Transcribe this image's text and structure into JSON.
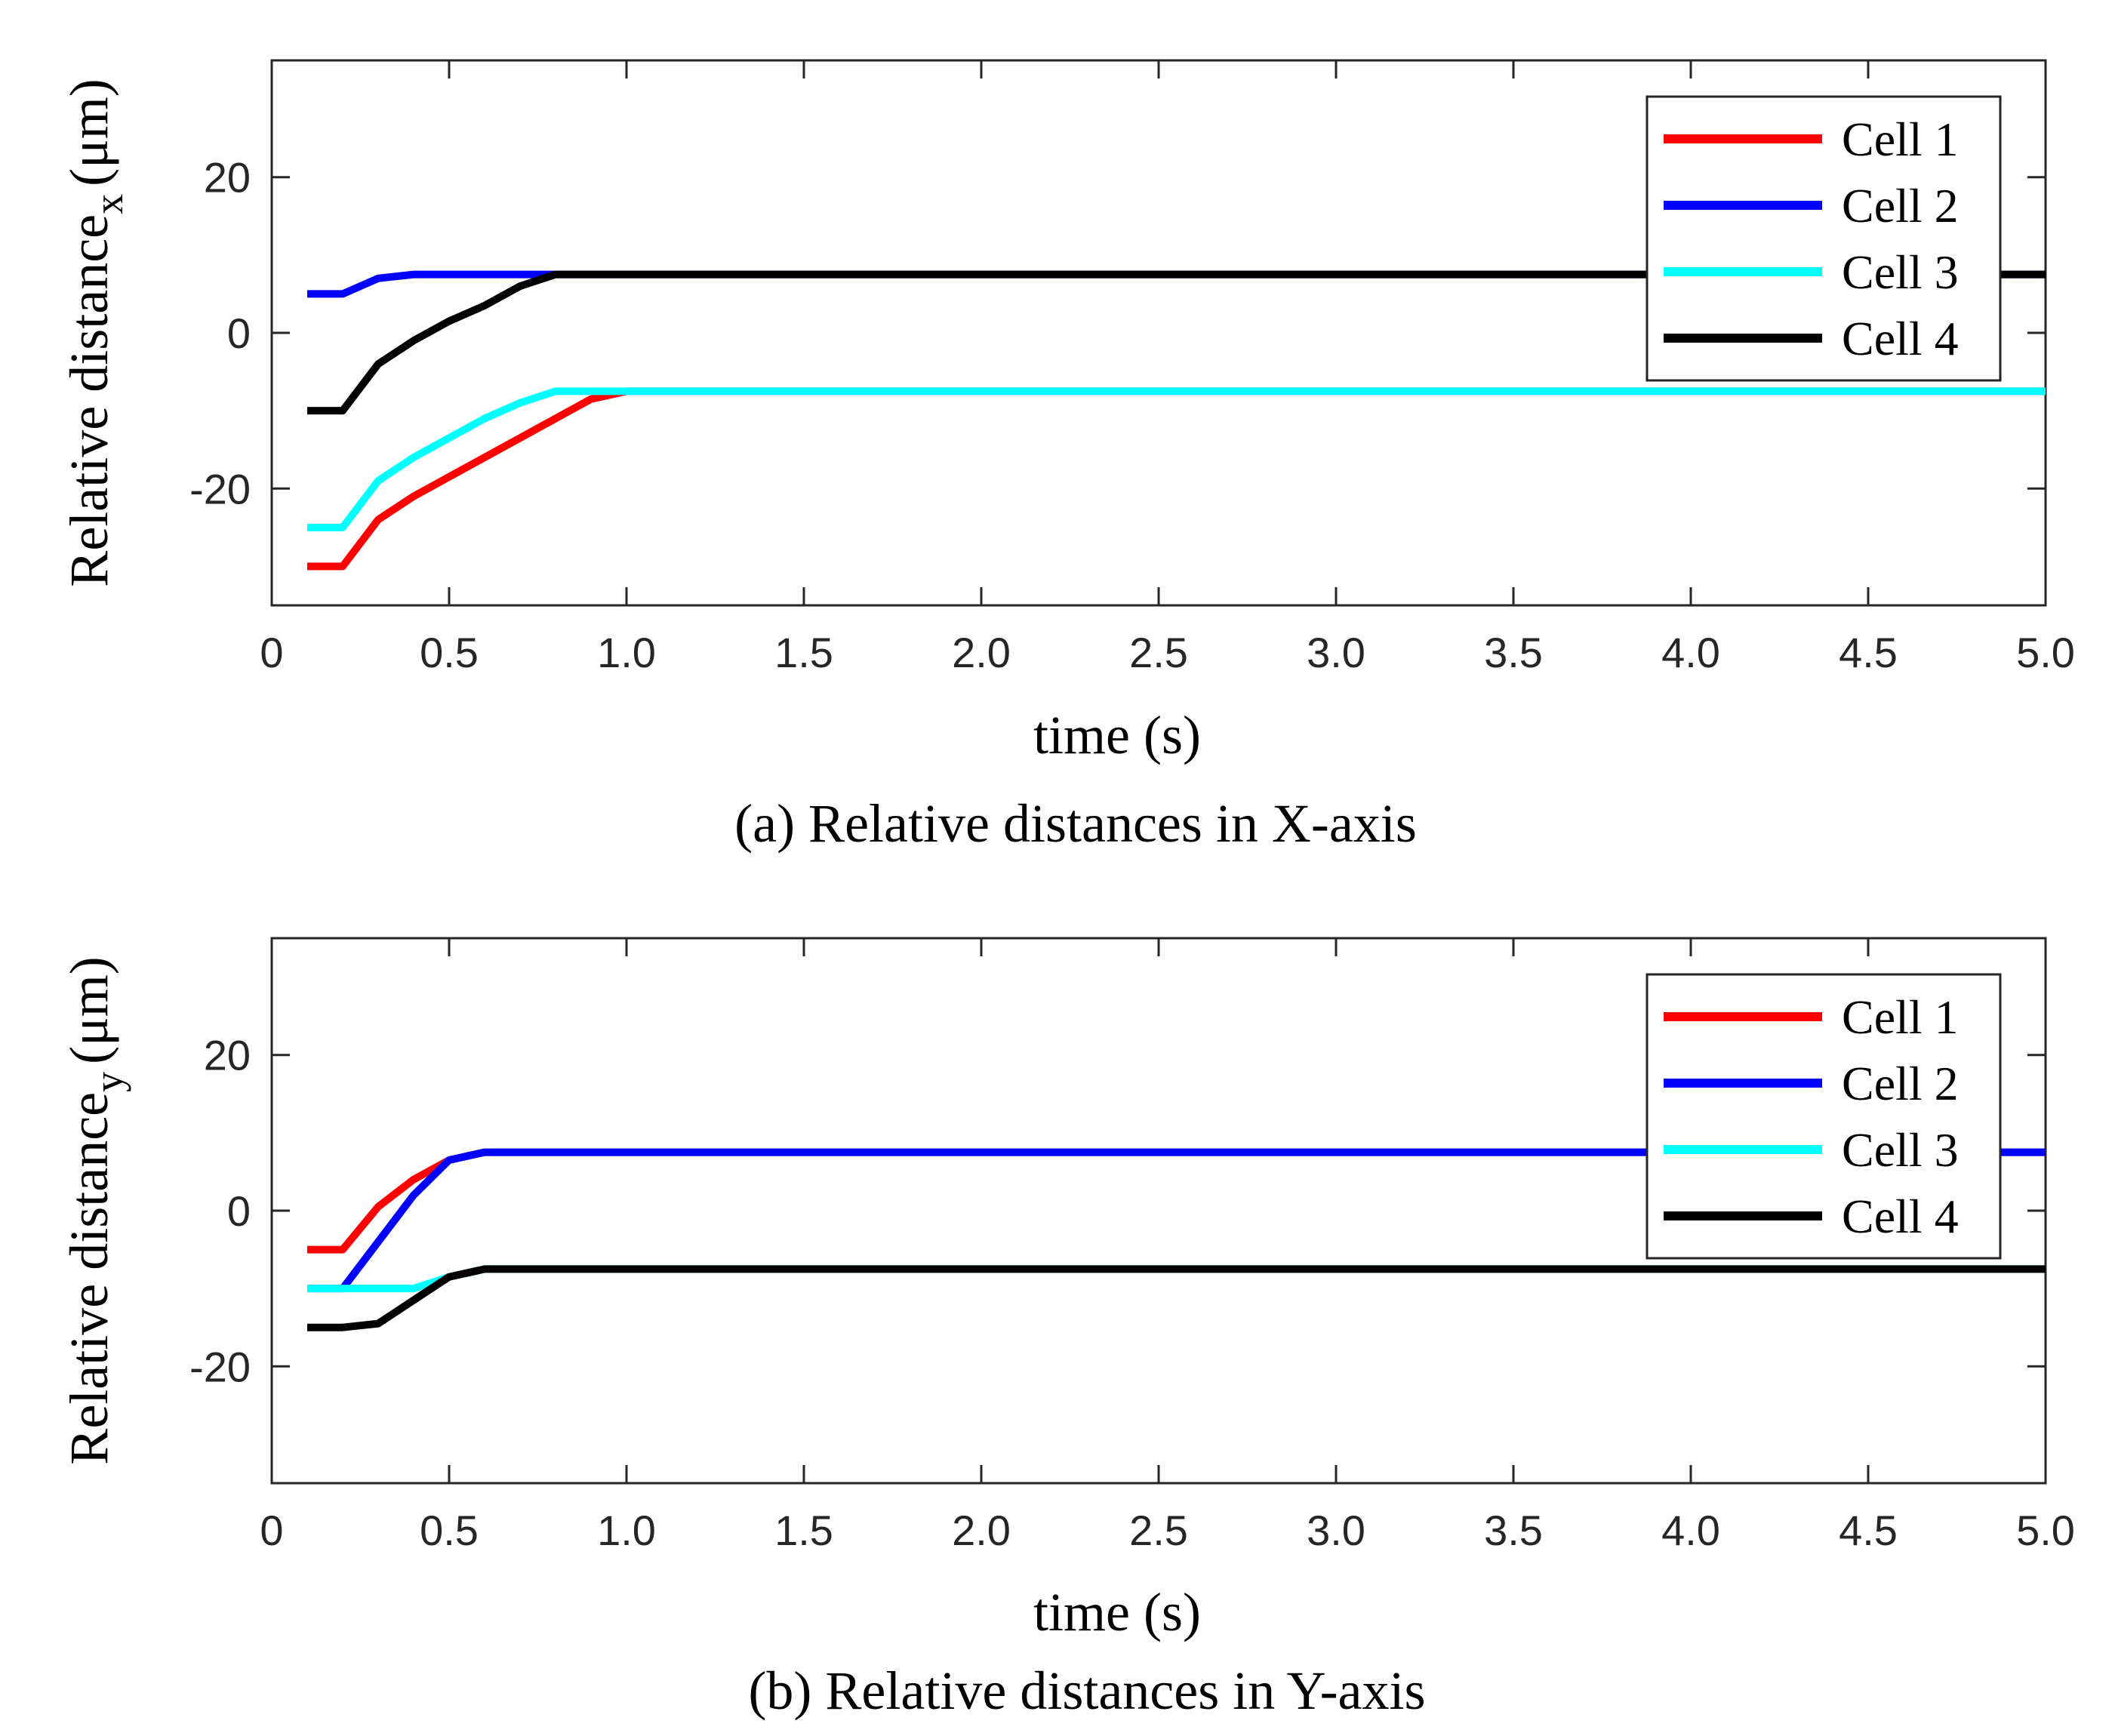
{
  "chart_data": [
    {
      "type": "line",
      "id": "a",
      "caption": "(a) Relative distances in X-axis",
      "xlabel": "time (s)",
      "ylabel": "Relative distance",
      "ylabel_sub": "x",
      "ylabel_unit": "(μm)",
      "xlim": [
        0,
        5.0
      ],
      "ylim": [
        -35,
        35
      ],
      "xticks": [
        0,
        0.5,
        1.0,
        1.5,
        2.0,
        2.5,
        3.0,
        3.5,
        4.0,
        4.5,
        5.0
      ],
      "xtick_labels": [
        "0",
        "0.5",
        "1.0",
        "1.5",
        "2.0",
        "2.5",
        "3.0",
        "3.5",
        "4.0",
        "4.5",
        "5.0"
      ],
      "yticks": [
        -20,
        0,
        20
      ],
      "ytick_labels": [
        "-20",
        "0",
        "20"
      ],
      "legend_position": "top-right",
      "series": [
        {
          "name": "Cell 1",
          "color": "#ff0000",
          "x": [
            0.1,
            0.2,
            0.3,
            0.4,
            0.5,
            0.6,
            0.7,
            0.8,
            0.9,
            1.0,
            5.0
          ],
          "y": [
            -30,
            -30,
            -24,
            -21,
            -18.5,
            -16,
            -13.5,
            -11,
            -8.5,
            -7.5,
            -7.5
          ]
        },
        {
          "name": "Cell 2",
          "color": "#0000ff",
          "x": [
            0.1,
            0.2,
            0.3,
            0.4,
            0.5,
            0.8,
            5.0
          ],
          "y": [
            5,
            5,
            7,
            7.5,
            7.5,
            7.5,
            7.5
          ]
        },
        {
          "name": "Cell 3",
          "color": "#00ffff",
          "x": [
            0.1,
            0.2,
            0.3,
            0.4,
            0.5,
            0.6,
            0.7,
            0.8,
            5.0
          ],
          "y": [
            -25,
            -25,
            -19,
            -16,
            -13.5,
            -11,
            -9,
            -7.5,
            -7.5
          ]
        },
        {
          "name": "Cell 4",
          "color": "#000000",
          "x": [
            0.1,
            0.2,
            0.3,
            0.4,
            0.5,
            0.6,
            0.7,
            0.8,
            5.0
          ],
          "y": [
            -10,
            -10,
            -4,
            -1,
            1.5,
            3.5,
            6,
            7.5,
            7.5
          ]
        }
      ]
    },
    {
      "type": "line",
      "id": "b",
      "caption": "(b) Relative distances in Y-axis",
      "xlabel": "time (s)",
      "ylabel": "Relative distance",
      "ylabel_sub": "y",
      "ylabel_unit": "(μm)",
      "xlim": [
        0,
        5.0
      ],
      "ylim": [
        -35,
        35
      ],
      "xticks": [
        0,
        0.5,
        1.0,
        1.5,
        2.0,
        2.5,
        3.0,
        3.5,
        4.0,
        4.5,
        5.0
      ],
      "xtick_labels": [
        "0",
        "0.5",
        "1.0",
        "1.5",
        "2.0",
        "2.5",
        "3.0",
        "3.5",
        "4.0",
        "4.5",
        "5.0"
      ],
      "yticks": [
        -20,
        0,
        20
      ],
      "ytick_labels": [
        "-20",
        "0",
        "20"
      ],
      "legend_position": "top-right",
      "series": [
        {
          "name": "Cell 1",
          "color": "#ff0000",
          "x": [
            0.1,
            0.2,
            0.3,
            0.4,
            0.5,
            0.6,
            5.0
          ],
          "y": [
            -5,
            -5,
            0.5,
            4,
            6.5,
            7.5,
            7.5
          ]
        },
        {
          "name": "Cell 2",
          "color": "#0000ff",
          "x": [
            0.1,
            0.2,
            0.3,
            0.4,
            0.5,
            0.6,
            5.0
          ],
          "y": [
            -10,
            -10,
            -4,
            2,
            6.5,
            7.5,
            7.5
          ]
        },
        {
          "name": "Cell 3",
          "color": "#00ffff",
          "x": [
            0.1,
            0.2,
            0.3,
            0.4,
            0.5,
            0.6,
            5.0
          ],
          "y": [
            -10,
            -10,
            -10,
            -10,
            -8.5,
            -7.5,
            -7.5
          ]
        },
        {
          "name": "Cell 4",
          "color": "#000000",
          "x": [
            0.1,
            0.2,
            0.3,
            0.4,
            0.5,
            0.6,
            5.0
          ],
          "y": [
            -15,
            -15,
            -14.5,
            -11.5,
            -8.5,
            -7.5,
            -7.5
          ]
        }
      ]
    }
  ]
}
